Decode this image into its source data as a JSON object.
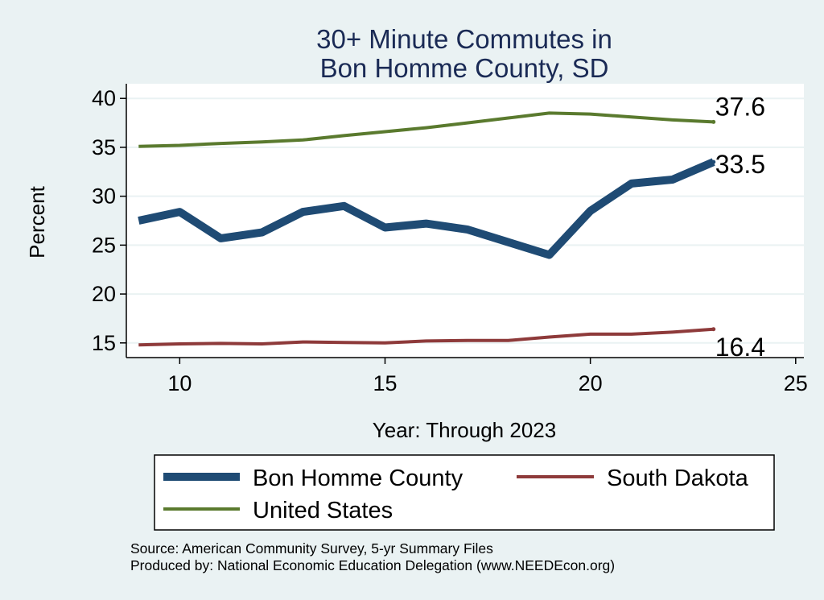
{
  "chart_data": {
    "type": "line",
    "title": [
      "30+ Minute Commutes in",
      "Bon Homme County, SD"
    ],
    "xlabel": "Year: Through 2023",
    "ylabel": "Percent",
    "xlim": [
      8.7,
      25.2
    ],
    "ylim": [
      13.5,
      41.5
    ],
    "xticks": [
      10,
      15,
      20,
      25
    ],
    "yticks": [
      15,
      20,
      25,
      30,
      35,
      40
    ],
    "grid": true,
    "x": [
      9,
      10,
      11,
      12,
      13,
      14,
      15,
      16,
      17,
      18,
      19,
      20,
      21,
      22,
      23
    ],
    "series": [
      {
        "name": "United States",
        "color": "#5a7a2e",
        "width": 4,
        "values": [
          35.1,
          35.2,
          35.4,
          35.55,
          35.75,
          36.2,
          36.6,
          37.0,
          37.5,
          38.0,
          38.5,
          38.4,
          38.1,
          37.8,
          37.6
        ],
        "end_label": "37.6"
      },
      {
        "name": "Bon Homme County",
        "color": "#1f4b74",
        "width": 10,
        "values": [
          27.5,
          28.4,
          25.7,
          26.3,
          28.4,
          29.0,
          26.8,
          27.2,
          26.6,
          25.3,
          24.0,
          28.5,
          31.3,
          31.7,
          33.5
        ],
        "end_label": "33.5"
      },
      {
        "name": "South Dakota",
        "color": "#8e3a3a",
        "width": 4,
        "values": [
          14.8,
          14.9,
          14.95,
          14.9,
          15.1,
          15.05,
          15.0,
          15.2,
          15.25,
          15.25,
          15.6,
          15.9,
          15.9,
          16.1,
          16.4
        ],
        "end_label": "16.4"
      }
    ],
    "legend": {
      "position": "bottom",
      "entries": [
        {
          "name": "Bon Homme County",
          "color": "#1f4b74",
          "width": 10
        },
        {
          "name": "South Dakota",
          "color": "#8e3a3a",
          "width": 4
        },
        {
          "name": "United States",
          "color": "#5a7a2e",
          "width": 4
        }
      ]
    }
  },
  "footnotes": {
    "source": "Source: American Community Survey, 5-yr Summary Files",
    "produced": "Produced by: National Economic Education Delegation (www.NEEDEcon.org)"
  }
}
